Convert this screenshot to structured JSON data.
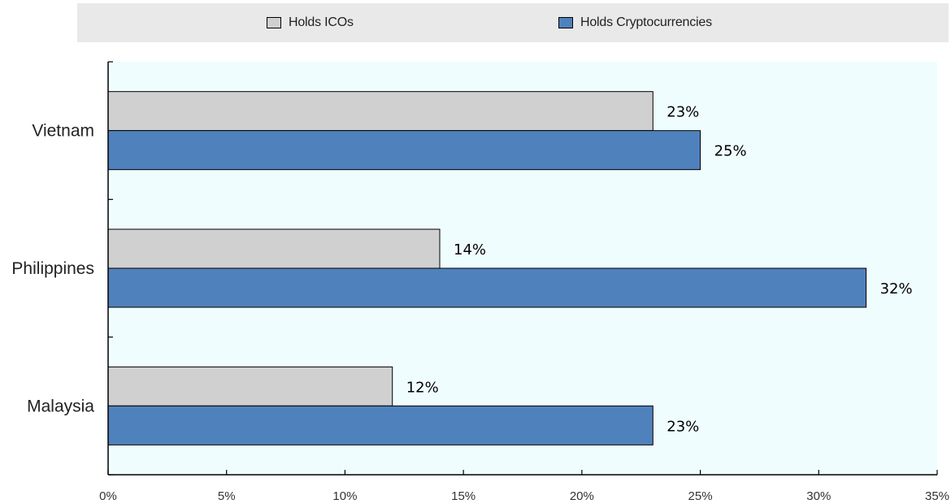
{
  "chart_data": {
    "type": "bar",
    "orientation": "horizontal",
    "categories": [
      "Vietnam",
      "Philippines",
      "Malaysia"
    ],
    "series": [
      {
        "name": "Holds ICOs",
        "values": [
          23,
          14,
          12
        ],
        "color": "#d0d0d0"
      },
      {
        "name": "Holds Cryptocurrencies",
        "values": [
          25,
          32,
          23
        ],
        "color": "#4f81bd"
      }
    ],
    "data_labels": [
      [
        "23%",
        "14%",
        "12%"
      ],
      [
        "25%",
        "32%",
        "23%"
      ]
    ],
    "x_ticks": [
      "0%",
      "5%",
      "10%",
      "15%",
      "20%",
      "25%",
      "30%",
      "35%"
    ],
    "xlim": [
      0,
      35
    ],
    "legend_placement": "top",
    "plot_background": "#f0fdfe",
    "grid": false
  }
}
